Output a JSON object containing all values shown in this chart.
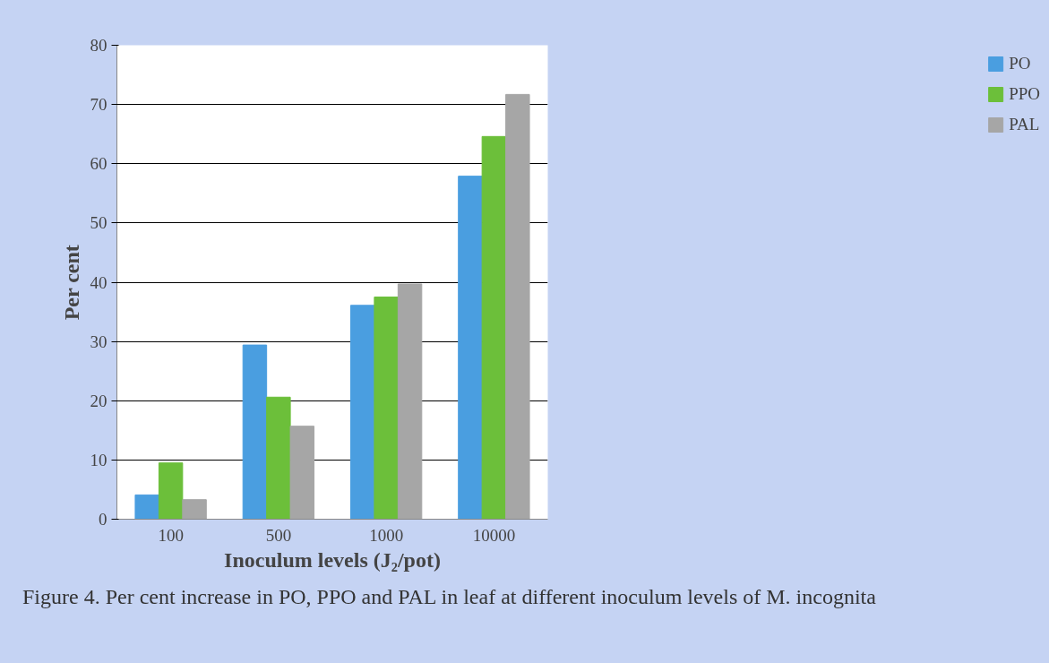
{
  "chart_data": {
    "type": "bar",
    "xlabel": "Inoculum levels (J₂/pot)",
    "ylabel": "Per cent",
    "categories": [
      "100",
      "500",
      "1000",
      "10000"
    ],
    "series": [
      {
        "name": "PO",
        "color": "#4a9ee0",
        "values": [
          4.1,
          29.4,
          36.1,
          57.9
        ]
      },
      {
        "name": "PPO",
        "color": "#6cbf3a",
        "values": [
          9.5,
          20.6,
          37.5,
          64.6
        ]
      },
      {
        "name": "PAL",
        "color": "#a6a6a6",
        "values": [
          3.3,
          15.7,
          39.7,
          71.7
        ]
      }
    ],
    "ylim": [
      0,
      80
    ],
    "yticks": [
      0,
      10,
      20,
      30,
      40,
      50,
      60,
      70,
      80
    ],
    "grid": "y",
    "legend": "right",
    "annotations": [
      "Figure 4. Per cent increase in PO, PPO  and PAL in leaf at different  inoculum levels of M. incognita"
    ]
  }
}
